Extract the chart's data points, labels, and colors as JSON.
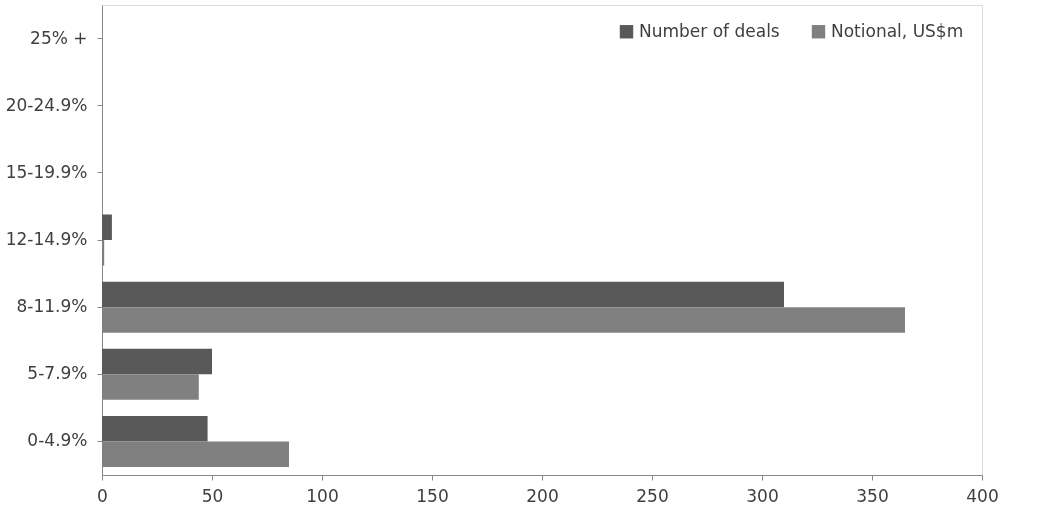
{
  "chart_data": {
    "type": "bar",
    "orientation": "horizontal",
    "categories": [
      "25% +",
      "20-24.9%",
      "15-19.9%",
      "12-14.9%",
      "8-11.9%",
      "5-7.9%",
      "0-4.9%"
    ],
    "series": [
      {
        "name": "Number of deals",
        "color": "#595959",
        "values": [
          0,
          0,
          0,
          4.5,
          310,
          50,
          48
        ]
      },
      {
        "name": "Notional, US$m",
        "color": "#808080",
        "values": [
          0,
          0,
          0,
          1,
          365,
          44,
          85
        ]
      }
    ],
    "xlim": [
      0,
      400
    ],
    "xticks": [
      0,
      50,
      100,
      150,
      200,
      250,
      300,
      350,
      400
    ],
    "grid": false,
    "legend": "top right"
  }
}
